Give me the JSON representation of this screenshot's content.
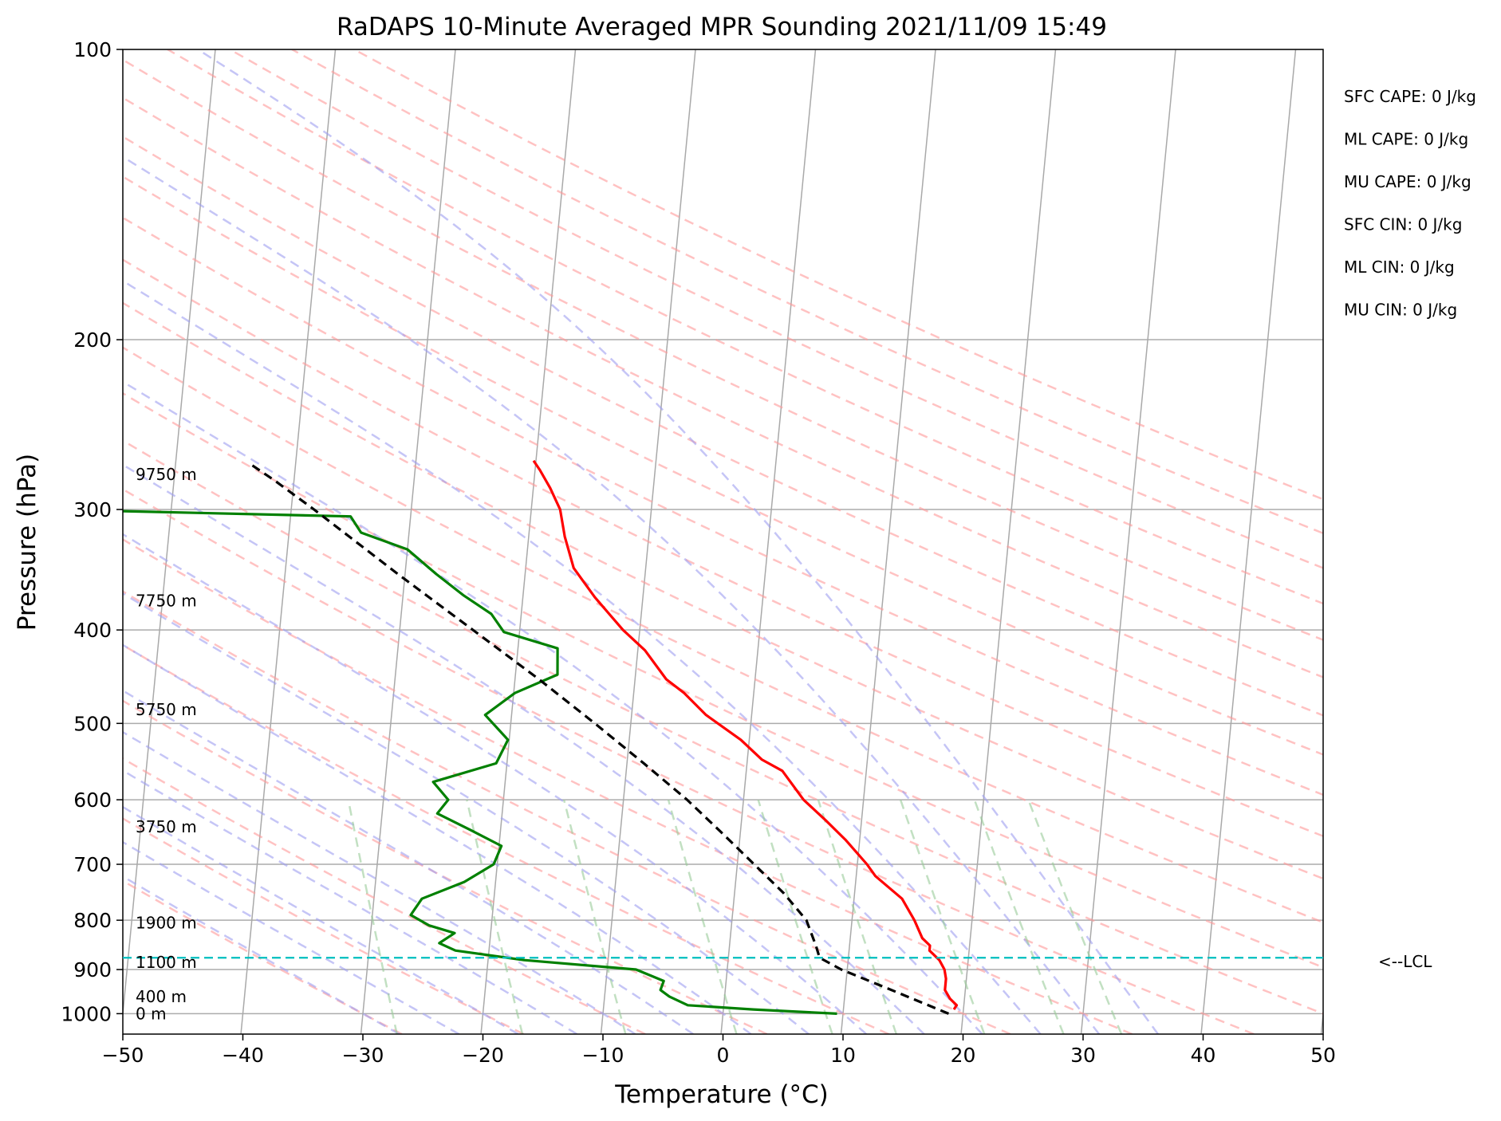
{
  "chart_data": {
    "type": "line",
    "title": "RaDAPS 10-Minute Averaged MPR Sounding 2021/11/09 15:49",
    "xlabel": "Temperature (°C)",
    "ylabel": "Pressure (hPa)",
    "xlim": [
      -50,
      50
    ],
    "ylim": [
      1050,
      100
    ],
    "y_scale": "log",
    "grid": true,
    "x_ticks": [
      -50,
      -40,
      -30,
      -20,
      -10,
      0,
      10,
      20,
      30,
      40,
      50
    ],
    "x_tick_labels": [
      "−50",
      "−40",
      "−30",
      "−20",
      "−10",
      "0",
      "10",
      "20",
      "30",
      "40",
      "50"
    ],
    "y_ticks": [
      100,
      200,
      300,
      400,
      500,
      600,
      700,
      800,
      900,
      1000
    ],
    "y_tick_labels": [
      "100",
      "200",
      "300",
      "400",
      "500",
      "600",
      "700",
      "800",
      "900",
      "1000"
    ],
    "skew_x_per_decade": 116,
    "reference_lines": {
      "isotherms_start": -150,
      "isotherms_end": 60,
      "isotherm_step": 10,
      "dry_adiabat_thetas_c": [
        -30,
        -20,
        -10,
        0,
        10,
        20,
        30,
        40,
        50,
        60,
        70,
        80,
        90,
        100,
        110,
        120,
        130,
        140,
        150,
        160,
        170,
        180
      ],
      "moist_adiabat_starts_c": [
        -30,
        -25,
        -20,
        -15,
        -10,
        -5,
        0,
        5,
        10,
        15,
        20,
        25,
        30,
        35
      ],
      "mixing_ratios_gkg": [
        0.4,
        1,
        2,
        4,
        7,
        10,
        16,
        24,
        32
      ],
      "mixing_ratio_top_p": 600
    },
    "series": [
      {
        "key": "temperature",
        "color": "#ff0000",
        "points": [
          [
            990,
            19.2
          ],
          [
            980,
            19.4
          ],
          [
            965,
            18.8
          ],
          [
            945,
            18.3
          ],
          [
            920,
            18.3
          ],
          [
            900,
            18.1
          ],
          [
            880,
            17.6
          ],
          [
            860,
            16.7
          ],
          [
            850,
            16.7
          ],
          [
            835,
            16.0
          ],
          [
            800,
            15.2
          ],
          [
            760,
            14.0
          ],
          [
            720,
            11.6
          ],
          [
            700,
            10.8
          ],
          [
            660,
            8.8
          ],
          [
            630,
            7.0
          ],
          [
            600,
            5.0
          ],
          [
            560,
            3.0
          ],
          [
            545,
            1.2
          ],
          [
            520,
            -0.7
          ],
          [
            490,
            -3.8
          ],
          [
            465,
            -5.8
          ],
          [
            450,
            -7.4
          ],
          [
            420,
            -9.4
          ],
          [
            400,
            -11.4
          ],
          [
            370,
            -14.0
          ],
          [
            345,
            -16.0
          ],
          [
            320,
            -17.0
          ],
          [
            300,
            -17.6
          ],
          [
            285,
            -18.6
          ],
          [
            273,
            -19.6
          ],
          [
            267,
            -20.2
          ]
        ]
      },
      {
        "key": "dewpoint",
        "color": "#008000",
        "points": [
          [
            1000,
            9.5
          ],
          [
            990,
            2.5
          ],
          [
            980,
            -3.0
          ],
          [
            960,
            -4.6
          ],
          [
            945,
            -5.4
          ],
          [
            925,
            -5.2
          ],
          [
            900,
            -7.6
          ],
          [
            880,
            -17.0
          ],
          [
            860,
            -22.8
          ],
          [
            845,
            -24.2
          ],
          [
            825,
            -23.0
          ],
          [
            810,
            -25.2
          ],
          [
            790,
            -26.8
          ],
          [
            760,
            -26.0
          ],
          [
            730,
            -22.6
          ],
          [
            700,
            -20.3
          ],
          [
            670,
            -19.8
          ],
          [
            645,
            -22.5
          ],
          [
            620,
            -25.4
          ],
          [
            600,
            -24.6
          ],
          [
            575,
            -26.0
          ],
          [
            550,
            -20.9
          ],
          [
            520,
            -20.1
          ],
          [
            490,
            -22.2
          ],
          [
            465,
            -19.9
          ],
          [
            445,
            -16.5
          ],
          [
            418,
            -16.7
          ],
          [
            402,
            -21.3
          ],
          [
            385,
            -22.5
          ],
          [
            368,
            -25.0
          ],
          [
            350,
            -27.4
          ],
          [
            330,
            -30.0
          ],
          [
            317,
            -34.0
          ],
          [
            305,
            -35.0
          ],
          [
            301,
            -55.0
          ],
          [
            300,
            -70.0
          ]
        ]
      },
      {
        "key": "parcel",
        "color": "#000000",
        "points": [
          [
            1000,
            18.8
          ],
          [
            950,
            14.3
          ],
          [
            900,
            9.5
          ],
          [
            875,
            7.6
          ],
          [
            850,
            7.2
          ],
          [
            800,
            6.2
          ],
          [
            750,
            4.1
          ],
          [
            700,
            1.4
          ],
          [
            650,
            -1.5
          ],
          [
            600,
            -4.7
          ],
          [
            550,
            -8.6
          ],
          [
            500,
            -13.0
          ],
          [
            450,
            -18.0
          ],
          [
            400,
            -23.9
          ],
          [
            350,
            -30.6
          ],
          [
            300,
            -38.1
          ],
          [
            280,
            -41.6
          ],
          [
            270,
            -43.6
          ]
        ]
      }
    ],
    "lcl": {
      "pressure": 875,
      "label": "<--LCL",
      "color": "#00bfbf"
    },
    "height_labels": [
      {
        "pressure": 1000,
        "label": "0 m"
      },
      {
        "pressure": 960,
        "label": "400 m"
      },
      {
        "pressure": 885,
        "label": "1100 m"
      },
      {
        "pressure": 805,
        "label": "1900 m"
      },
      {
        "pressure": 640,
        "label": "3750 m"
      },
      {
        "pressure": 484,
        "label": "5750 m"
      },
      {
        "pressure": 373,
        "label": "7750 m"
      },
      {
        "pressure": 276,
        "label": "9750 m"
      }
    ],
    "stats": [
      "SFC CAPE: 0 J/kg",
      "ML CAPE: 0 J/kg",
      "MU CAPE: 0 J/kg",
      "SFC CIN: 0 J/kg",
      "ML CIN: 0 J/kg",
      "MU CIN: 0 J/kg"
    ]
  }
}
